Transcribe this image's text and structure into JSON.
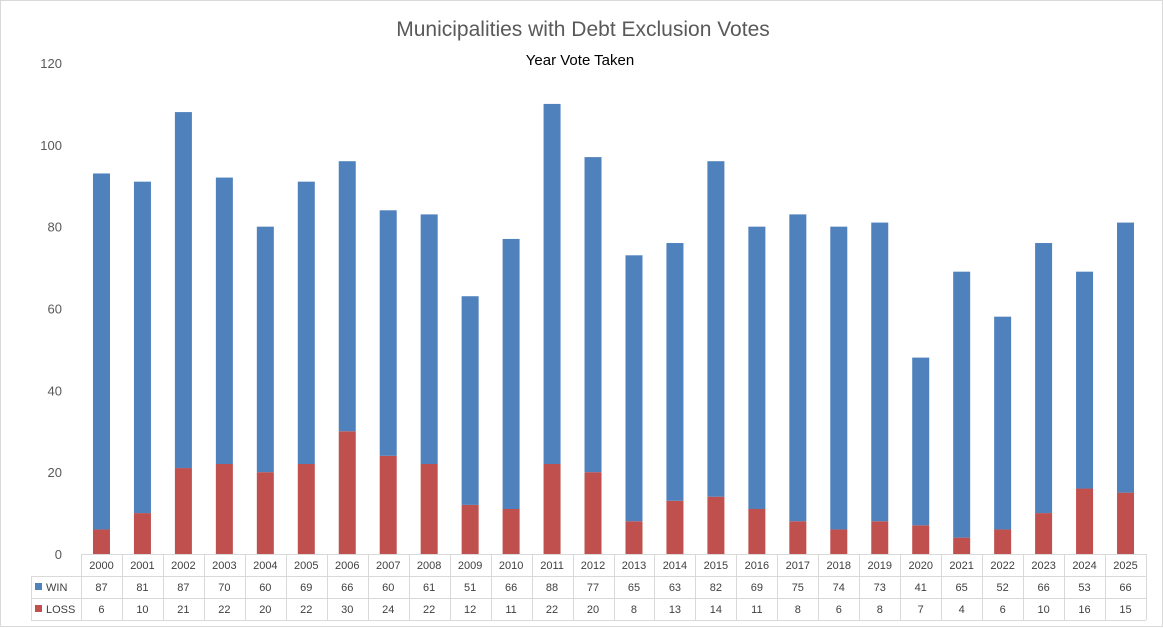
{
  "chart_data": {
    "type": "bar",
    "stacked": true,
    "title": "Municipalities with Debt Exclusion Votes",
    "subtitle": "Year Vote Taken",
    "categories": [
      "2000",
      "2001",
      "2002",
      "2003",
      "2004",
      "2005",
      "2006",
      "2007",
      "2008",
      "2009",
      "2010",
      "2011",
      "2012",
      "2013",
      "2014",
      "2015",
      "2016",
      "2017",
      "2018",
      "2019",
      "2020",
      "2021",
      "2022",
      "2023",
      "2024",
      "2025"
    ],
    "series": [
      {
        "name": "LOSS",
        "color": "#c0504d",
        "values": [
          6,
          10,
          21,
          22,
          20,
          22,
          30,
          24,
          22,
          12,
          11,
          22,
          20,
          8,
          13,
          14,
          11,
          8,
          6,
          8,
          7,
          4,
          6,
          10,
          16,
          15
        ]
      },
      {
        "name": "WIN",
        "color": "#4f81bd",
        "values": [
          87,
          81,
          87,
          70,
          60,
          69,
          66,
          60,
          61,
          51,
          66,
          88,
          77,
          65,
          63,
          82,
          69,
          75,
          74,
          73,
          41,
          65,
          52,
          66,
          53,
          66
        ]
      }
    ],
    "ylim": [
      0,
      120
    ],
    "yticks": [
      0,
      20,
      40,
      60,
      80,
      100,
      120
    ],
    "grid": false,
    "data_table": true,
    "data_table_rows": [
      "WIN",
      "LOSS"
    ],
    "legend_placement": "data-table"
  }
}
